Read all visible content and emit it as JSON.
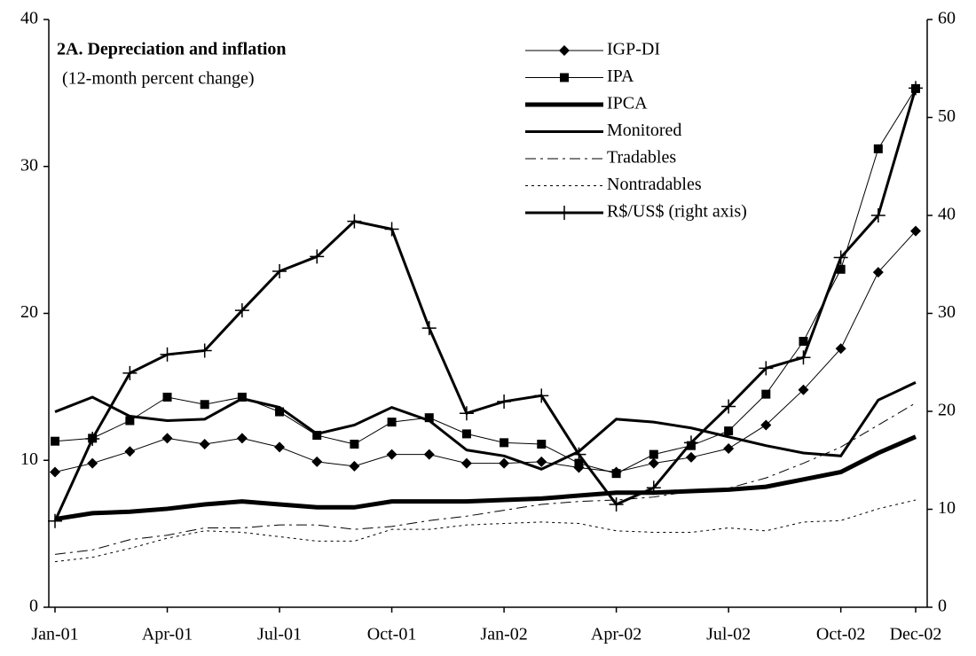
{
  "chart_data": {
    "type": "line",
    "title": "2A. Depreciation and inflation",
    "subtitle": "(12-month percent change)",
    "categories": [
      "Jan-01",
      null,
      null,
      "Apr-01",
      null,
      null,
      "Jul-01",
      null,
      null,
      "Oct-01",
      null,
      null,
      "Jan-02",
      null,
      null,
      "Apr-02",
      null,
      null,
      "Jul-02",
      null,
      null,
      "Oct-02",
      null,
      "Dec-02"
    ],
    "ylim": [
      0,
      40
    ],
    "yticks": [
      0,
      10,
      20,
      30,
      40
    ],
    "y2lim": [
      0,
      60
    ],
    "y2ticks": [
      0,
      10,
      20,
      30,
      40,
      50,
      60
    ],
    "grid": false,
    "legend": "top-right",
    "series": [
      {
        "name": "IGP-DI",
        "color": "#000000",
        "marker": "diamond",
        "width": 1,
        "dash": "solid",
        "values": [
          9.2,
          9.8,
          10.6,
          11.5,
          11.1,
          11.5,
          10.9,
          9.9,
          9.6,
          10.4,
          10.4,
          9.8,
          9.8,
          9.9,
          9.5,
          9.2,
          9.8,
          10.2,
          10.8,
          12.4,
          14.8,
          17.6,
          22.8,
          25.6
        ]
      },
      {
        "name": "IPA",
        "color": "#000000",
        "marker": "square",
        "width": 1,
        "dash": "solid",
        "values": [
          11.3,
          11.5,
          12.7,
          14.3,
          13.8,
          14.3,
          13.3,
          11.7,
          11.1,
          12.6,
          12.9,
          11.8,
          11.2,
          11.1,
          9.8,
          9.1,
          10.4,
          11.0,
          12.0,
          14.5,
          18.1,
          23.0,
          31.2,
          35.3
        ]
      },
      {
        "name": "IPCA",
        "color": "#000000",
        "marker": "none",
        "width": 5,
        "dash": "solid",
        "values": [
          6.0,
          6.4,
          6.5,
          6.7,
          7.0,
          7.2,
          7.0,
          6.8,
          6.8,
          7.2,
          7.2,
          7.2,
          7.3,
          7.4,
          7.6,
          7.8,
          7.8,
          7.9,
          8.0,
          8.2,
          8.7,
          9.2,
          10.5,
          11.6
        ]
      },
      {
        "name": "Monitored",
        "color": "#000000",
        "marker": "none",
        "width": 3,
        "dash": "solid",
        "values": [
          13.3,
          14.3,
          13.0,
          12.7,
          12.8,
          14.2,
          13.6,
          11.8,
          12.4,
          13.6,
          12.7,
          10.7,
          10.3,
          9.4,
          10.6,
          12.8,
          12.6,
          12.2,
          11.6,
          11.0,
          10.5,
          10.3,
          14.1,
          15.3
        ]
      },
      {
        "name": "Tradables",
        "color": "#000000",
        "marker": "none",
        "width": 1,
        "dash": "dashdot",
        "values": [
          3.6,
          3.9,
          4.6,
          4.9,
          5.4,
          5.4,
          5.6,
          5.6,
          5.3,
          5.5,
          5.9,
          6.2,
          6.6,
          7.0,
          7.2,
          7.3,
          7.5,
          7.9,
          8.1,
          8.8,
          9.8,
          10.9,
          12.4,
          13.9
        ]
      },
      {
        "name": "Nontradables",
        "color": "#000000",
        "marker": "none",
        "width": 1,
        "dash": "dotted",
        "values": [
          3.1,
          3.4,
          4.0,
          4.7,
          5.2,
          5.1,
          4.8,
          4.5,
          4.5,
          5.3,
          5.3,
          5.6,
          5.7,
          5.8,
          5.7,
          5.2,
          5.1,
          5.1,
          5.4,
          5.2,
          5.8,
          5.9,
          6.7,
          7.3
        ]
      },
      {
        "name": "R$/US$ (right axis)",
        "color": "#000000",
        "marker": "plus",
        "width": 3,
        "dash": "solid",
        "axis": "y2",
        "values": [
          8.8,
          17.2,
          23.9,
          25.8,
          26.2,
          30.3,
          34.3,
          35.8,
          39.4,
          38.6,
          28.5,
          19.8,
          21.0,
          21.6,
          15.6,
          10.5,
          12.2,
          16.8,
          20.5,
          24.4,
          25.5,
          35.7,
          40.0,
          53.0
        ]
      }
    ]
  }
}
